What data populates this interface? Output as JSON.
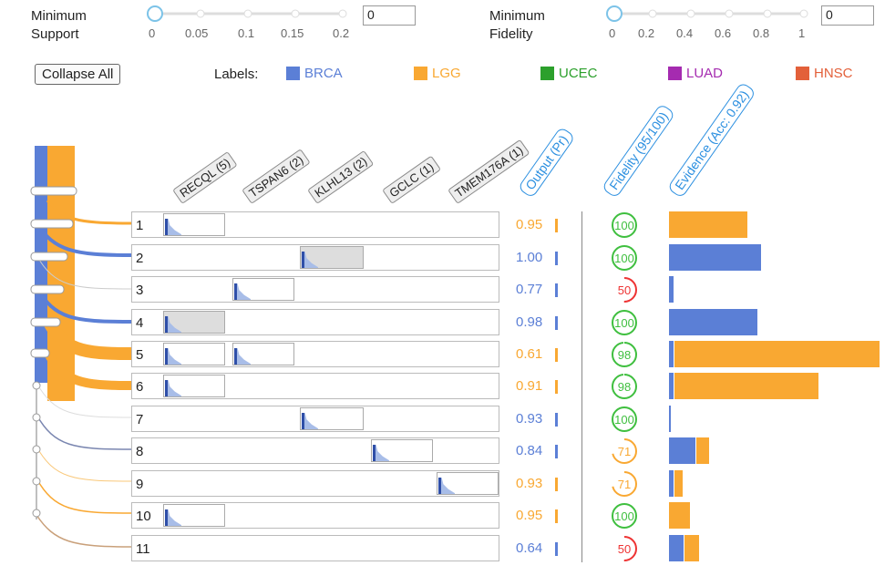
{
  "controls": {
    "min_support": {
      "label_line1": "Minimum",
      "label_line2": "Support",
      "value": "0",
      "ticks": [
        "0",
        "0.05",
        "0.1",
        "0.15",
        "0.2"
      ]
    },
    "min_fidelity": {
      "label_line1": "Minimum",
      "label_line2": "Fidelity",
      "value": "0",
      "ticks": [
        "0",
        "0.2",
        "0.4",
        "0.6",
        "0.8",
        "1"
      ]
    },
    "collapse_label": "Collapse All"
  },
  "legend": {
    "title": "Labels:",
    "items": [
      {
        "label": "BRCA",
        "color": "#5b7fd6"
      },
      {
        "label": "LGG",
        "color": "#f9a832"
      },
      {
        "label": "UCEC",
        "color": "#2ca02c"
      },
      {
        "label": "LUAD",
        "color": "#a52bb0"
      },
      {
        "label": "HNSC",
        "color": "#e3603a"
      }
    ]
  },
  "features": [
    "RECQL (5)",
    "TSPAN6 (2)",
    "KLHL13 (2)",
    "GCLC (1)",
    "TMEM176A (1)"
  ],
  "columns": {
    "output": "Output (Pr)",
    "fidelity": "Fidelity (95/100)",
    "evidence": "Evidence (Acc: 0.92)"
  },
  "rows": [
    {
      "id": "1",
      "output": "0.95",
      "fidelity": "100",
      "out_cls": "LGG",
      "fid_frac": 1.0,
      "ev": [
        {
          "c": "LGG",
          "v": 0.38
        }
      ]
    },
    {
      "id": "2",
      "output": "1.00",
      "fidelity": "100",
      "out_cls": "BRCA",
      "fid_frac": 1.0,
      "ev": [
        {
          "c": "BRCA",
          "v": 0.45
        }
      ]
    },
    {
      "id": "3",
      "output": "0.77",
      "fidelity": "50",
      "out_cls": "BRCA",
      "fid_frac": 0.5,
      "ev": [
        {
          "c": "BRCA",
          "v": 0.02
        }
      ]
    },
    {
      "id": "4",
      "output": "0.98",
      "fidelity": "100",
      "out_cls": "BRCA",
      "fid_frac": 1.0,
      "ev": [
        {
          "c": "BRCA",
          "v": 0.43
        }
      ]
    },
    {
      "id": "5",
      "output": "0.61",
      "fidelity": "98",
      "out_cls": "LGG",
      "fid_frac": 0.98,
      "ev": [
        {
          "c": "BRCA",
          "v": 0.02
        },
        {
          "c": "LGG",
          "v": 1.0
        }
      ]
    },
    {
      "id": "6",
      "output": "0.91",
      "fidelity": "98",
      "out_cls": "LGG",
      "fid_frac": 0.98,
      "ev": [
        {
          "c": "BRCA",
          "v": 0.02
        },
        {
          "c": "LGG",
          "v": 0.7
        }
      ]
    },
    {
      "id": "7",
      "output": "0.93",
      "fidelity": "100",
      "out_cls": "BRCA",
      "fid_frac": 1.0,
      "ev": [
        {
          "c": "BRCA",
          "v": 0.01
        }
      ]
    },
    {
      "id": "8",
      "output": "0.84",
      "fidelity": "71",
      "out_cls": "BRCA",
      "fid_frac": 0.71,
      "ev": [
        {
          "c": "BRCA",
          "v": 0.13
        },
        {
          "c": "LGG",
          "v": 0.06
        }
      ]
    },
    {
      "id": "9",
      "output": "0.93",
      "fidelity": "71",
      "out_cls": "LGG",
      "fid_frac": 0.71,
      "ev": [
        {
          "c": "BRCA",
          "v": 0.02
        },
        {
          "c": "LGG",
          "v": 0.04
        }
      ]
    },
    {
      "id": "10",
      "output": "0.95",
      "fidelity": "100",
      "out_cls": "LGG",
      "fid_frac": 1.0,
      "ev": [
        {
          "c": "LGG",
          "v": 0.1
        }
      ]
    },
    {
      "id": "11",
      "output": "0.64",
      "fidelity": "50",
      "out_cls": "BRCA",
      "fid_frac": 0.5,
      "ev": [
        {
          "c": "BRCA",
          "v": 0.07
        },
        {
          "c": "LGG",
          "v": 0.07
        }
      ]
    }
  ]
}
